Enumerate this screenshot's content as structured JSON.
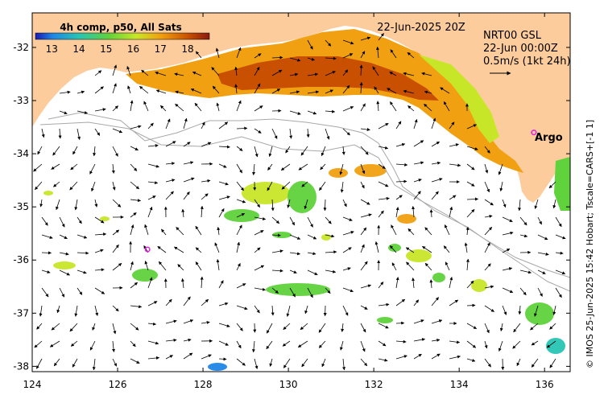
{
  "map": {
    "datetime_label": "22-Jun-2025 20Z",
    "product": {
      "name": "NRT00 GSL",
      "valid": "22-Jun 00:00Z",
      "scale_text": "0.5m/s (1kt 24h)"
    },
    "argo_label": "Argo",
    "credit": "© IMOS 25-Jun-2025 15:42 Hobart; Tscale=CARS+[-1 1]",
    "colorbar": {
      "title": "4h comp, p50, All Sats",
      "ticks": [
        "13",
        "14",
        "15",
        "16",
        "17",
        "18"
      ],
      "range": [
        12.4,
        18.8
      ],
      "colors": {
        "c12": "#1a1ab4",
        "c13": "#1f86e6",
        "c14": "#28c4b4",
        "c15": "#5fd23c",
        "c16": "#c8e628",
        "c17": "#f0a010",
        "c18": "#c85000",
        "c19": "#8a1a10"
      }
    },
    "axes": {
      "x_ticks": [
        "124",
        "126",
        "128",
        "130",
        "132",
        "134",
        "136"
      ],
      "y_ticks": [
        "-32",
        "-33",
        "-34",
        "-35",
        "-36",
        "-37",
        "-38"
      ],
      "lon_range": [
        124,
        136.6
      ],
      "lat_range": [
        -38.1,
        -31.35
      ]
    },
    "colors": {
      "land": "#fccc9c",
      "ocean": "#ffffff",
      "argo_marker": "#e020e0",
      "arrow": "#000000",
      "contour": "#a8a8a8"
    },
    "argo_positions": [
      {
        "lon": 135.75,
        "lat": -33.6
      },
      {
        "lon": 126.7,
        "lat": -35.8
      }
    ]
  }
}
